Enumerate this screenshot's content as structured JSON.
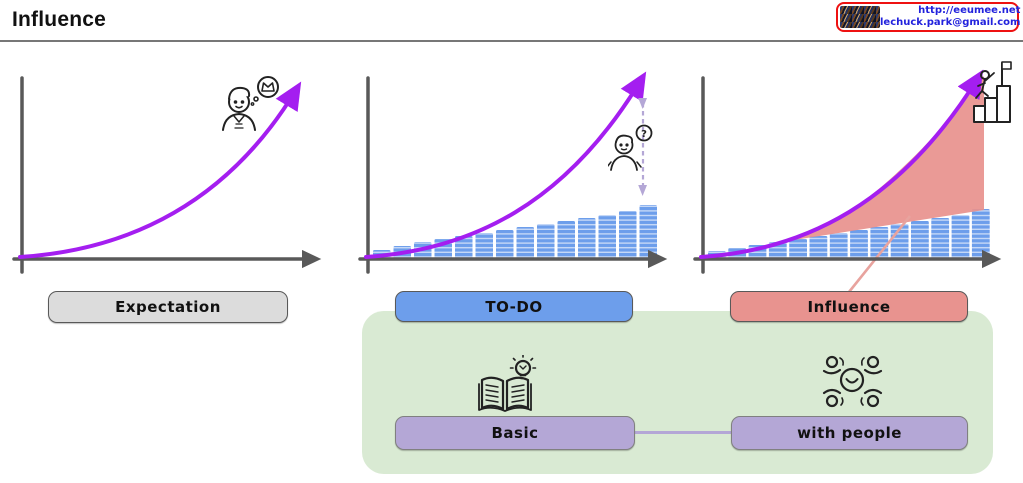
{
  "header": {
    "title": "Influence"
  },
  "logo": {
    "url": "http://eeumee.net",
    "email": "lechuck.park@gmail.com"
  },
  "colors": {
    "curve": "#A41EF0",
    "bar": "#6D9EEB",
    "influence_fill": "#E8918D",
    "expectation_btn": "#DCDCDC",
    "todo_btn": "#6D9EEB",
    "influence_btn": "#E8938F",
    "basic_btn": "#B4A7D6",
    "panel_bg": "#D9EAD3",
    "dashed": "#B4A7D6",
    "axis": "#595959",
    "callout": "#E8A39E",
    "pill_border": "#595959",
    "logo_border": "#EE1111",
    "logo_text": "#2222DD"
  },
  "chart_data": [
    {
      "type": "line",
      "title": "Expectation",
      "xlabel": "",
      "ylabel": "",
      "curve": "exponential growth curve ending in arrow",
      "annotations": [
        "person dreaming of a crown (thought bubble)"
      ]
    },
    {
      "type": "bar",
      "title": "TO-DO",
      "bar_values": [
        9,
        13,
        17,
        20,
        23,
        26,
        29,
        32,
        35,
        38,
        41,
        44,
        48,
        54
      ],
      "units": "relative height",
      "overlay_curve": "exponential expectation curve",
      "annotations": [
        "dashed double-headed arrow marking gap between curve tip and top bar",
        "confused person with question-mark bubble"
      ]
    },
    {
      "type": "area",
      "title": "Influence",
      "bar_values": [
        8,
        11,
        14,
        17,
        20,
        23,
        26,
        29,
        32,
        35,
        38,
        41,
        44,
        50
      ],
      "units": "relative height",
      "overlay_curve": "exponential expectation curve",
      "area": "gap between expectation curve and bars filled salmon, labeled Influence via callout line",
      "annotations": [
        "person climbing steps to a summit flag"
      ]
    }
  ],
  "panel": {
    "items": [
      {
        "label": "Basic",
        "icon": "book-idea-icon"
      },
      {
        "label": "with people",
        "icon": "teamwork-icon"
      }
    ]
  }
}
